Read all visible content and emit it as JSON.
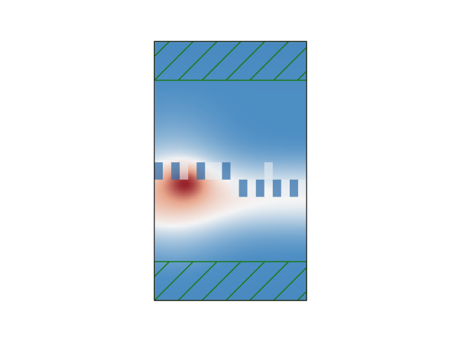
{
  "chart_data": {
    "type": "heatmap",
    "title": "",
    "xlabel": "",
    "ylabel": "",
    "axis_ticks_visible": false,
    "colormap": "RdBu_r",
    "colormap_colors": {
      "low": "#2f6aa6",
      "mid_low": "#4f8fc4",
      "neutral": "#f5f5f5",
      "mid_high": "#e7a48a",
      "high": "#8f1622"
    },
    "field": {
      "background_level": 0.24,
      "hotspot": {
        "x": 0.2,
        "y": 0.55,
        "peak": 0.98,
        "spread": 0.11
      },
      "pale_band": {
        "y": 0.6,
        "level": 0.5,
        "width": 0.13
      },
      "left_glow": {
        "x": 0.12,
        "y": 0.57,
        "level": 0.56,
        "spread": 0.24
      }
    },
    "coarse_block_row": {
      "y_from": 0.4,
      "y_to": 0.6,
      "columns": 18,
      "rows": 3,
      "dark_cells": [
        [
          0,
          1
        ],
        [
          2,
          1
        ],
        [
          5,
          1
        ],
        [
          8,
          1
        ],
        [
          10,
          2
        ],
        [
          12,
          2
        ],
        [
          14,
          2
        ],
        [
          16,
          2
        ]
      ],
      "light_cells": [
        [
          3,
          1
        ],
        [
          6,
          1
        ],
        [
          7,
          1
        ],
        [
          9,
          2
        ],
        [
          11,
          2
        ],
        [
          13,
          1
        ],
        [
          15,
          2
        ],
        [
          17,
          2
        ]
      ]
    },
    "hatched_regions": [
      {
        "y_from": 0.0,
        "y_to": 0.15,
        "hatch": "/",
        "edge_color": "#1a7a1a"
      },
      {
        "y_from": 0.85,
        "y_to": 1.0,
        "hatch": "/",
        "edge_color": "#1a7a1a"
      }
    ],
    "frame_color": "#000000"
  }
}
